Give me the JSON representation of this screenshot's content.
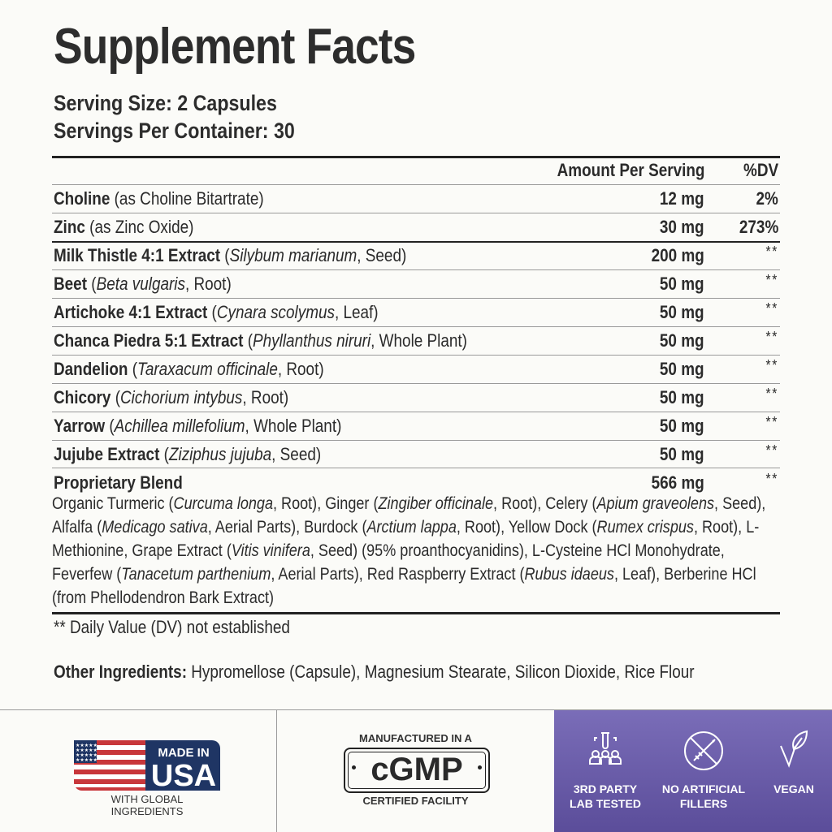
{
  "header": {
    "title": "Supplement Facts",
    "serving_size": "Serving Size: 2 Capsules",
    "servings_per_container": "Servings Per Container: 30"
  },
  "table": {
    "columns": {
      "amount": "Amount Per Serving",
      "dv": "%DV"
    },
    "rows": [
      {
        "name": "Choline",
        "detail_pre": " (as Choline Bitartrate)",
        "italic": "",
        "detail_post": "",
        "amount": "12 mg",
        "dv": "2%"
      },
      {
        "name": "Zinc",
        "detail_pre": " (as Zinc Oxide)",
        "italic": "",
        "detail_post": "",
        "amount": "30 mg",
        "dv": "273%"
      },
      {
        "name": "Milk Thistle 4:1 Extract",
        "detail_pre": " (",
        "italic": "Silybum marianum",
        "detail_post": ", Seed)",
        "amount": "200 mg",
        "dv": "**"
      },
      {
        "name": "Beet",
        "detail_pre": " (",
        "italic": "Beta vulgaris",
        "detail_post": ", Root)",
        "amount": "50 mg",
        "dv": "**"
      },
      {
        "name": "Artichoke 4:1 Extract",
        "detail_pre": " (",
        "italic": "Cynara scolymus",
        "detail_post": ", Leaf)",
        "amount": "50 mg",
        "dv": "**"
      },
      {
        "name": "Chanca Piedra 5:1 Extract",
        "detail_pre": " (",
        "italic": "Phyllanthus niruri",
        "detail_post": ", Whole Plant)",
        "amount": "50 mg",
        "dv": "**"
      },
      {
        "name": "Dandelion",
        "detail_pre": " (",
        "italic": "Taraxacum officinale",
        "detail_post": ", Root)",
        "amount": "50 mg",
        "dv": "**"
      },
      {
        "name": "Chicory",
        "detail_pre": " (",
        "italic": "Cichorium intybus",
        "detail_post": ", Root)",
        "amount": "50 mg",
        "dv": "**"
      },
      {
        "name": "Yarrow",
        "detail_pre": " (",
        "italic": "Achillea millefolium",
        "detail_post": ", Whole Plant)",
        "amount": "50 mg",
        "dv": "**"
      },
      {
        "name": "Jujube Extract",
        "detail_pre": " (",
        "italic": "Ziziphus jujuba",
        "detail_post": ", Seed)",
        "amount": "50 mg",
        "dv": "**"
      },
      {
        "name": "Proprietary Blend",
        "detail_pre": "",
        "italic": "",
        "detail_post": "",
        "amount": "566 mg",
        "dv": "**"
      }
    ],
    "blend_parts": [
      [
        "Organic Turmeric (",
        "n"
      ],
      [
        "Curcuma longa",
        "i"
      ],
      [
        ", Root), Ginger (",
        "n"
      ],
      [
        "Zingiber officinale",
        "i"
      ],
      [
        ", Root), Celery (",
        "n"
      ],
      [
        "Apium graveolens",
        "i"
      ],
      [
        ", Seed), Alfalfa (",
        "n"
      ],
      [
        "Medicago sativa",
        "i"
      ],
      [
        ", Aerial Parts), Burdock (",
        "n"
      ],
      [
        "Arctium lappa",
        "i"
      ],
      [
        ", Root), Yellow Dock (",
        "n"
      ],
      [
        "Rumex crispus",
        "i"
      ],
      [
        ", Root), L-Methionine, Grape Extract (",
        "n"
      ],
      [
        "Vitis vinifera",
        "i"
      ],
      [
        ", Seed) (95% proanthocyanidins), L-Cysteine HCl Monohydrate, Feverfew (",
        "n"
      ],
      [
        "Tanacetum parthenium",
        "i"
      ],
      [
        ", Aerial Parts), Red Raspberry Extract (",
        "n"
      ],
      [
        "Rubus idaeus",
        "i"
      ],
      [
        ", Leaf), Berberine HCl (from Phellodendron Bark Extract)",
        "n"
      ]
    ]
  },
  "footnote": "** Daily Value (DV) not established",
  "other_ingredients": {
    "label": "Other Ingredients:",
    "value": " Hypromellose (Capsule), Magnesium Stearate, Silicon Dioxide, Rice Flour"
  },
  "badges": {
    "usa": {
      "line1": "MADE IN",
      "line2": "USA",
      "sub": "WITH GLOBAL INGREDIENTS"
    },
    "cgmp": {
      "top": "MANUFACTURED IN A",
      "main": "cGMP",
      "bottom": "CERTIFIED FACILITY"
    },
    "features": [
      {
        "label1": "3RD PARTY",
        "label2": "LAB TESTED",
        "icon": "lab-test-icon"
      },
      {
        "label1": "NO ARTIFICIAL",
        "label2": "FILLERS",
        "icon": "no-syringe-icon"
      },
      {
        "label1": "VEGAN",
        "label2": "",
        "icon": "leaf-icon"
      }
    ]
  },
  "colors": {
    "purple_top": "#7a6db8",
    "purple_bottom": "#5b4d9a",
    "flag_red": "#c8373b",
    "flag_blue": "#1f3564",
    "text": "#2b2b2b"
  }
}
